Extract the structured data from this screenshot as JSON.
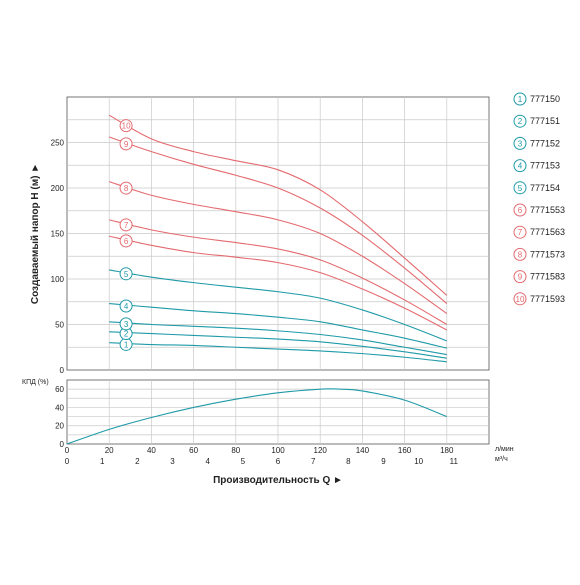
{
  "chart_data": [
    {
      "type": "line",
      "ylabel": "Создаваемый напор H (м)",
      "xlim": [
        0,
        200
      ],
      "ylim": [
        0,
        300
      ],
      "x_ticks": [
        "0",
        "20",
        "40",
        "60",
        "80",
        "100",
        "120",
        "140",
        "160",
        "180"
      ],
      "y_ticks": [
        "0",
        "50",
        "100",
        "150",
        "200",
        "250"
      ],
      "x_unit": "л/мин",
      "grid": true,
      "series": [
        {
          "name": "777150",
          "label": "1",
          "color": "#1f9aa8",
          "x": [
            20,
            40,
            60,
            80,
            100,
            120,
            140,
            160,
            180
          ],
          "y": [
            30,
            28,
            27,
            25,
            23,
            21,
            18,
            14,
            9
          ]
        },
        {
          "name": "777151",
          "label": "2",
          "color": "#1f9aa8",
          "x": [
            20,
            40,
            60,
            80,
            100,
            120,
            140,
            160,
            180
          ],
          "y": [
            42,
            40,
            38,
            36,
            34,
            31,
            26,
            20,
            13
          ]
        },
        {
          "name": "777152",
          "label": "3",
          "color": "#1f9aa8",
          "x": [
            20,
            40,
            60,
            80,
            100,
            120,
            140,
            160,
            180
          ],
          "y": [
            53,
            50,
            48,
            46,
            43,
            39,
            33,
            25,
            17
          ]
        },
        {
          "name": "777153",
          "label": "4",
          "color": "#1f9aa8",
          "x": [
            20,
            40,
            60,
            80,
            100,
            120,
            140,
            160,
            180
          ],
          "y": [
            73,
            69,
            65,
            62,
            58,
            53,
            44,
            35,
            24
          ]
        },
        {
          "name": "777154",
          "label": "5",
          "color": "#1f9aa8",
          "x": [
            20,
            40,
            60,
            80,
            100,
            120,
            140,
            160,
            180
          ],
          "y": [
            110,
            102,
            96,
            91,
            86,
            79,
            66,
            50,
            32
          ]
        },
        {
          "name": "7771553",
          "label": "6",
          "color": "#e46a6e",
          "x": [
            20,
            40,
            60,
            80,
            100,
            120,
            140,
            160,
            180
          ],
          "y": [
            147,
            137,
            129,
            124,
            118,
            107,
            89,
            68,
            44
          ]
        },
        {
          "name": "7771563",
          "label": "7",
          "color": "#e46a6e",
          "x": [
            20,
            40,
            60,
            80,
            100,
            120,
            140,
            160,
            180
          ],
          "y": [
            165,
            154,
            146,
            140,
            133,
            121,
            101,
            77,
            50
          ]
        },
        {
          "name": "7771573",
          "label": "8",
          "color": "#e46a6e",
          "x": [
            20,
            40,
            60,
            80,
            100,
            120,
            140,
            160,
            180
          ],
          "y": [
            207,
            192,
            182,
            174,
            165,
            150,
            125,
            95,
            62
          ]
        },
        {
          "name": "7771583",
          "label": "9",
          "color": "#e46a6e",
          "x": [
            20,
            40,
            60,
            80,
            100,
            120,
            140,
            160,
            180
          ],
          "y": [
            256,
            240,
            226,
            214,
            200,
            178,
            148,
            112,
            73
          ]
        },
        {
          "name": "7771593",
          "label": "10",
          "color": "#e46a6e",
          "x": [
            20,
            40,
            60,
            80,
            100,
            120,
            140,
            160,
            180
          ],
          "y": [
            280,
            254,
            240,
            230,
            220,
            198,
            163,
            123,
            82
          ]
        }
      ]
    },
    {
      "type": "line",
      "ylabel": "КПД (%)",
      "xlim": [
        0,
        200
      ],
      "ylim": [
        0,
        70
      ],
      "y_ticks": [
        "0",
        "20",
        "40",
        "60"
      ],
      "grid": true,
      "series": [
        {
          "color": "#1f9aa8",
          "x": [
            0,
            20,
            40,
            60,
            80,
            100,
            120,
            130,
            140,
            160,
            180
          ],
          "y": [
            0,
            16,
            29,
            40,
            49,
            56,
            60,
            60,
            58,
            48,
            30
          ]
        }
      ]
    }
  ],
  "bottom_axis": {
    "lpm_ticks": [
      "0",
      "20",
      "40",
      "60",
      "80",
      "100",
      "120",
      "140",
      "160",
      "180"
    ],
    "lpm_unit": "л/мин",
    "m3h_ticks": [
      "0",
      "1",
      "2",
      "3",
      "4",
      "5",
      "6",
      "7",
      "8",
      "9",
      "10",
      "11"
    ],
    "m3h_unit": "м³/ч",
    "xlabel": "Производительность Q ►"
  },
  "arrow_glyph": "►"
}
